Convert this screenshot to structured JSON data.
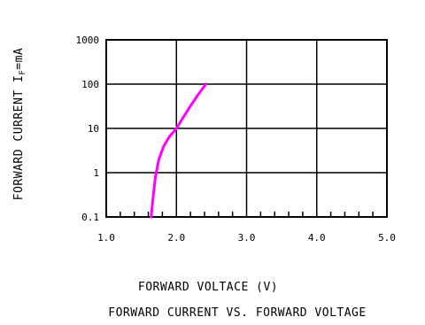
{
  "chart_data": {
    "type": "line",
    "title": "FORWARD CURRENT VS. FORWARD VOLTAGE",
    "xlabel": "FORWARD VOLTACE (V)",
    "ylabel": "FORWARD CURRENT I",
    "ylabel_subscript": "F",
    "ylabel_suffix": "=mA",
    "xlim": [
      1.0,
      5.0
    ],
    "ylim": [
      0.1,
      1000
    ],
    "y_scale": "log",
    "grid": true,
    "x_ticks": [
      1.0,
      2.0,
      3.0,
      4.0,
      5.0
    ],
    "x_tick_labels": [
      "1.0",
      "2.0",
      "3.0",
      "4.0",
      "5.0"
    ],
    "y_ticks": [
      0.1,
      1,
      10,
      100,
      1000
    ],
    "y_tick_labels": [
      "0.1",
      "1",
      "10",
      "100",
      "1000"
    ],
    "series": [
      {
        "color": "#ff00ff",
        "x": [
          1.64,
          1.67,
          1.7,
          1.75,
          1.82,
          1.9,
          2.0,
          2.1,
          2.2,
          2.3,
          2.42
        ],
        "y": [
          0.1,
          0.3,
          0.8,
          2.0,
          4.0,
          6.5,
          10,
          18,
          32,
          55,
          100
        ]
      }
    ]
  }
}
